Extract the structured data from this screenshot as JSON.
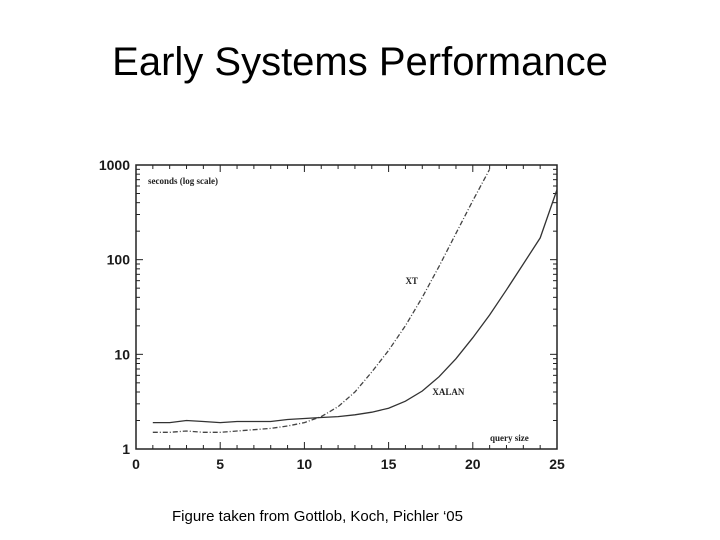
{
  "slide": {
    "title": "Early Systems Performance",
    "caption": "Figure taken from Gottlob, Koch, Pichler ‘05"
  },
  "chart_data": {
    "type": "line",
    "title": "",
    "xlabel": "query size",
    "ylabel": "seconds (log scale)",
    "xlim": [
      0,
      25
    ],
    "ylim": [
      1,
      1000
    ],
    "y_scale": "log",
    "grid": false,
    "x_ticks": [
      {
        "value": 0,
        "label": "0"
      },
      {
        "value": 5,
        "label": "5"
      },
      {
        "value": 10,
        "label": "10"
      },
      {
        "value": 15,
        "label": "15"
      },
      {
        "value": 20,
        "label": "20"
      },
      {
        "value": 25,
        "label": "25"
      }
    ],
    "y_ticks": [
      {
        "value": 1,
        "label": "1"
      },
      {
        "value": 10,
        "label": "10"
      },
      {
        "value": 100,
        "label": "100"
      },
      {
        "value": 1000,
        "label": "1000"
      }
    ],
    "series": [
      {
        "name": "XT",
        "style": "dash-dot",
        "color": "#444444",
        "x": [
          1,
          2,
          3,
          4,
          5,
          6,
          7,
          8,
          9,
          10,
          11,
          12,
          13,
          14,
          15,
          16,
          17,
          18,
          19,
          20,
          21
        ],
        "y": [
          1.5,
          1.5,
          1.55,
          1.5,
          1.5,
          1.55,
          1.6,
          1.65,
          1.75,
          1.9,
          2.2,
          2.8,
          4.0,
          6.5,
          11,
          20,
          40,
          85,
          190,
          420,
          900
        ]
      },
      {
        "name": "XALAN",
        "style": "solid",
        "color": "#333333",
        "x": [
          1,
          2,
          3,
          4,
          5,
          6,
          7,
          8,
          9,
          10,
          11,
          12,
          13,
          14,
          15,
          16,
          17,
          18,
          19,
          20,
          21,
          22,
          23,
          24,
          25
        ],
        "y": [
          1.9,
          1.9,
          2.0,
          1.95,
          1.9,
          1.95,
          1.95,
          1.95,
          2.05,
          2.1,
          2.15,
          2.2,
          2.3,
          2.45,
          2.7,
          3.2,
          4.1,
          5.8,
          9,
          15,
          26,
          48,
          90,
          170,
          550
        ]
      }
    ],
    "annotations": [
      {
        "text": "XT",
        "x": 16.0,
        "y": 55
      },
      {
        "text": "XALAN",
        "x": 17.6,
        "y": 3.7
      }
    ]
  }
}
